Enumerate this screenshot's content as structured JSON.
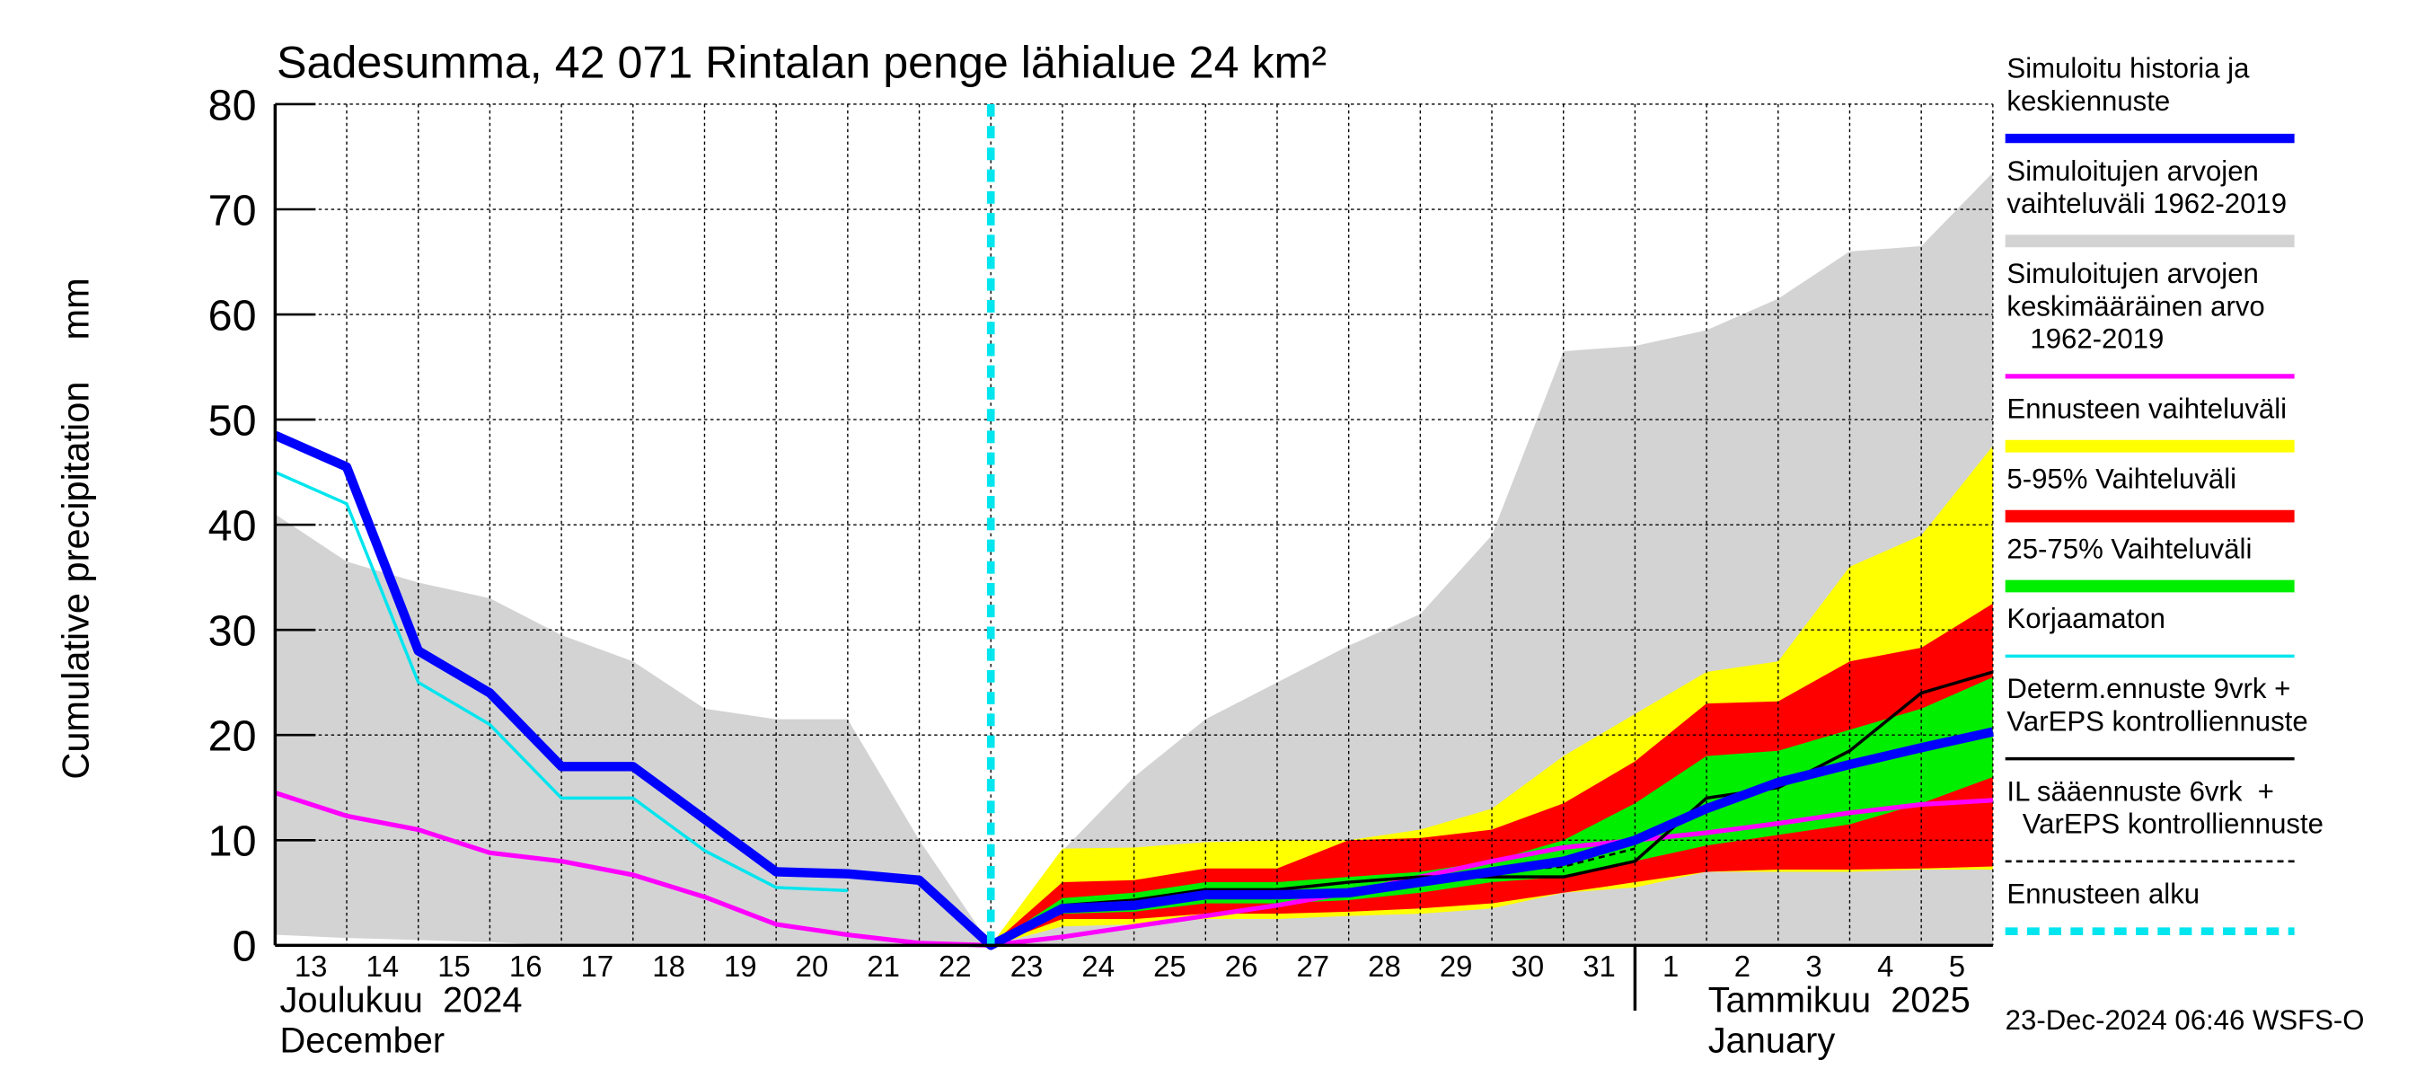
{
  "chart_data": {
    "type": "line",
    "title": "Sadesumma, 42 071 Rintalan penge lähialue 24 km²",
    "ylabel": "Cumulative precipitation    mm",
    "categories": [
      "13",
      "14",
      "15",
      "16",
      "17",
      "18",
      "19",
      "20",
      "21",
      "22",
      "23",
      "24",
      "25",
      "26",
      "27",
      "28",
      "29",
      "30",
      "31",
      "1",
      "2",
      "3",
      "4",
      "5",
      null
    ],
    "months": [
      {
        "label": "Joulukuu  2024",
        "label_en": "December",
        "at": "13"
      },
      {
        "label": "Tammikuu  2025",
        "label_en": "January",
        "at": "1"
      }
    ],
    "forecast_start": "23",
    "ylim": [
      0,
      80
    ],
    "yticks": [
      0,
      10,
      20,
      30,
      40,
      50,
      60,
      70,
      80
    ],
    "grid": true,
    "footer": "23-Dec-2024 06:46 WSFS-O",
    "series": [
      {
        "name": [
          "Simuloitu historia ja",
          "keskiennuste"
        ],
        "kind": "line",
        "color": "#0000ff",
        "width": 6,
        "values": [
          48.5,
          45.5,
          28,
          24,
          17,
          17,
          12,
          7,
          6.8,
          6.2,
          0,
          3.5,
          3.8,
          4.8,
          4.8,
          5,
          6,
          7,
          8,
          10,
          13,
          15.5,
          17.2,
          18.8,
          20.3
        ]
      },
      {
        "name": [
          "Simuloitujen arvojen",
          "vaihteluväli 1962-2019"
        ],
        "kind": "band",
        "color": "#d3d3d3",
        "width": 8,
        "upper": [
          41,
          36.5,
          34.5,
          33,
          29.5,
          27,
          22.5,
          21.5,
          21.5,
          10,
          0,
          9,
          16,
          21.5,
          25,
          28.5,
          31.5,
          39,
          56.5,
          57,
          58.5,
          61.5,
          66,
          66.5,
          73.5
        ],
        "lower": [
          1,
          0.7,
          0.5,
          0.3,
          0,
          0,
          0,
          0,
          0,
          0,
          0,
          0,
          0,
          0,
          0,
          0,
          0,
          0,
          0,
          0,
          0,
          0,
          0,
          0,
          0
        ]
      },
      {
        "name": [
          "Simuloitujen arvojen",
          "keskimääräinen arvo",
          "   1962-2019"
        ],
        "kind": "line",
        "color": "#ff00ff",
        "width": 3,
        "values": [
          14.5,
          12.3,
          11,
          8.8,
          8,
          6.7,
          4.6,
          2,
          1,
          0.2,
          0,
          0.8,
          1.8,
          2.8,
          3.8,
          5,
          6.5,
          8,
          9.3,
          10,
          10.7,
          11.6,
          12.6,
          13.4,
          13.8
        ]
      },
      {
        "name": [
          "Ennusteen vaihteluväli"
        ],
        "kind": "band",
        "color": "#ffff00",
        "width": 8,
        "upper": [
          null,
          null,
          null,
          null,
          null,
          null,
          null,
          null,
          null,
          null,
          0,
          9.2,
          9.3,
          9.8,
          10,
          10,
          11,
          13,
          18,
          22,
          26,
          27,
          36,
          39,
          47.5
        ],
        "lower": [
          null,
          null,
          null,
          null,
          null,
          null,
          null,
          null,
          null,
          null,
          0,
          1.8,
          2,
          2.5,
          2.5,
          2.8,
          3,
          3.5,
          5,
          5.5,
          7,
          7,
          7,
          7.2,
          7.2
        ]
      },
      {
        "name": [
          "5-95% Vaihteluväli"
        ],
        "kind": "band",
        "color": "#ff0000",
        "width": 8,
        "upper": [
          null,
          null,
          null,
          null,
          null,
          null,
          null,
          null,
          null,
          null,
          0,
          6,
          6.2,
          7.3,
          7.3,
          10,
          10.2,
          11,
          13.5,
          17.5,
          23,
          23.2,
          27,
          28.3,
          32.5
        ],
        "lower": [
          null,
          null,
          null,
          null,
          null,
          null,
          null,
          null,
          null,
          null,
          0,
          2.5,
          2.5,
          3,
          3,
          3.2,
          3.5,
          4,
          5,
          6,
          7,
          7.2,
          7.2,
          7.3,
          7.5
        ]
      },
      {
        "name": [
          "25-75% Vaihteluväli"
        ],
        "kind": "band",
        "color": "#00ee00",
        "width": 8,
        "upper": [
          null,
          null,
          null,
          null,
          null,
          null,
          null,
          null,
          null,
          null,
          0,
          4.5,
          5,
          6,
          6,
          6.5,
          7,
          8,
          10,
          13.5,
          18,
          18.5,
          20.5,
          22.5,
          25.5
        ],
        "lower": [
          null,
          null,
          null,
          null,
          null,
          null,
          null,
          null,
          null,
          null,
          0,
          3,
          3.2,
          4,
          4,
          4.3,
          5,
          6,
          6.5,
          8,
          9.5,
          10.5,
          11.5,
          13.5,
          16
        ]
      },
      {
        "name": [
          "Korjaamaton"
        ],
        "kind": "line",
        "color": "#00e5ee",
        "width": 2,
        "values": [
          45,
          42,
          25,
          21,
          14,
          14,
          9,
          5.5,
          5.2,
          null,
          null,
          null,
          null,
          null,
          null,
          null,
          null,
          null,
          null,
          null,
          null,
          null,
          null,
          null,
          null
        ]
      },
      {
        "name": [
          "Determ.ennuste 9vrk +",
          "VarEPS kontrolliennuste"
        ],
        "kind": "line",
        "color": "#000000",
        "width": 2,
        "values": [
          null,
          null,
          null,
          null,
          null,
          null,
          null,
          null,
          null,
          null,
          0,
          3.8,
          4.3,
          5.3,
          5.3,
          6,
          6.5,
          6.5,
          6.5,
          8,
          14,
          15,
          18.5,
          24,
          26
        ]
      },
      {
        "name": [
          "IL sääennuste 6vrk  +",
          "  VarEPS kontrolliennuste"
        ],
        "kind": "line",
        "color": "#000000",
        "width": 1.5,
        "dash": true,
        "values": [
          null,
          null,
          null,
          null,
          null,
          null,
          null,
          null,
          null,
          null,
          0,
          3.5,
          4,
          4.8,
          4.8,
          5,
          6,
          7,
          7.5,
          9.2,
          null,
          null,
          null,
          null,
          null
        ]
      },
      {
        "name": [
          "Ennusteen alku"
        ],
        "kind": "marker",
        "color": "#00e5ee",
        "width": 5,
        "dash": true
      }
    ]
  }
}
